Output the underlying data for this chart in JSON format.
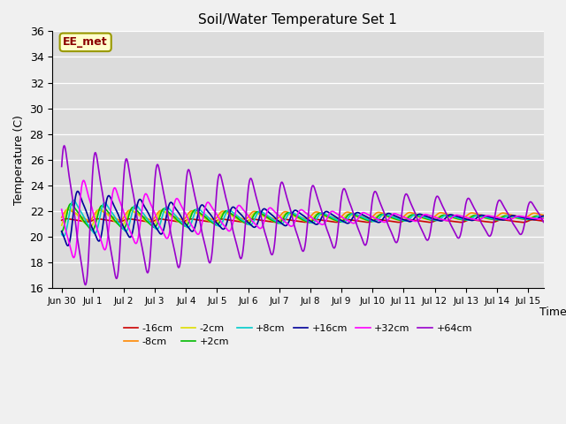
{
  "title": "Soil/Water Temperature Set 1",
  "xlabel": "Time",
  "ylabel": "Temperature (C)",
  "ylim": [
    16,
    36
  ],
  "annotation_text": "EE_met",
  "series_names": [
    "-16cm",
    "-8cm",
    "-2cm",
    "+2cm",
    "+8cm",
    "+16cm",
    "+32cm",
    "+64cm"
  ],
  "series_colors": [
    "#cc0000",
    "#ff8800",
    "#dddd00",
    "#00bb00",
    "#00cccc",
    "#000099",
    "#ff00ff",
    "#9900cc"
  ],
  "series_amps": [
    0.15,
    0.55,
    1.0,
    1.4,
    1.8,
    2.8,
    4.2,
    7.0
  ],
  "series_phases": [
    0.0,
    0.08,
    0.16,
    0.28,
    0.45,
    0.72,
    1.1,
    1.85
  ],
  "series_bases": [
    21.3,
    21.7,
    21.5,
    21.5,
    21.5,
    21.5,
    21.5,
    21.5
  ],
  "series_decays": [
    0.01,
    0.06,
    0.12,
    0.14,
    0.16,
    0.18,
    0.22,
    0.1
  ],
  "xtick_labels": [
    "Jun 30",
    "Jul 1",
    "Jul 2",
    "Jul 3",
    "Jul 4",
    "Jul 5",
    "Jul 6",
    "Jul 7",
    "Jul 8",
    "Jul 9",
    "Jul 10",
    "Jul 11",
    "Jul 12",
    "Jul 13",
    "Jul 14",
    "Jul 15"
  ],
  "xtick_positions": [
    0,
    1,
    2,
    3,
    4,
    5,
    6,
    7,
    8,
    9,
    10,
    11,
    12,
    13,
    14,
    15
  ]
}
